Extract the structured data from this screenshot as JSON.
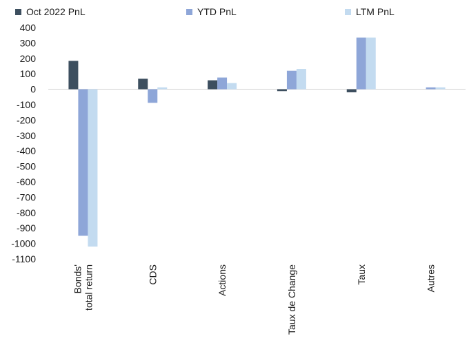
{
  "chart_data": {
    "type": "bar",
    "title": "",
    "xlabel": "",
    "ylabel": "",
    "ylim": [
      -1100,
      400
    ],
    "yticks": [
      400,
      300,
      200,
      100,
      0,
      -100,
      -200,
      -300,
      -400,
      -500,
      -600,
      -700,
      -800,
      -900,
      -1000,
      -1100
    ],
    "grid": false,
    "legend_position": "top",
    "categories": [
      [
        "Bonds'",
        "total return"
      ],
      [
        "CDS"
      ],
      [
        "Actions"
      ],
      [
        "Taux de Change"
      ],
      [
        "Taux"
      ],
      [
        "Autres"
      ]
    ],
    "series": [
      {
        "name": "Oct 2022 PnL",
        "color": "#3d4f5f",
        "values": [
          184,
          68,
          58,
          -12,
          -20,
          0
        ]
      },
      {
        "name": "YTD PnL",
        "color": "#8ea6d8",
        "values": [
          -950,
          -88,
          76,
          120,
          335,
          12
        ]
      },
      {
        "name": "LTM PnL",
        "color": "#c3dbf0",
        "values": [
          -1020,
          12,
          40,
          132,
          335,
          12
        ]
      }
    ]
  }
}
